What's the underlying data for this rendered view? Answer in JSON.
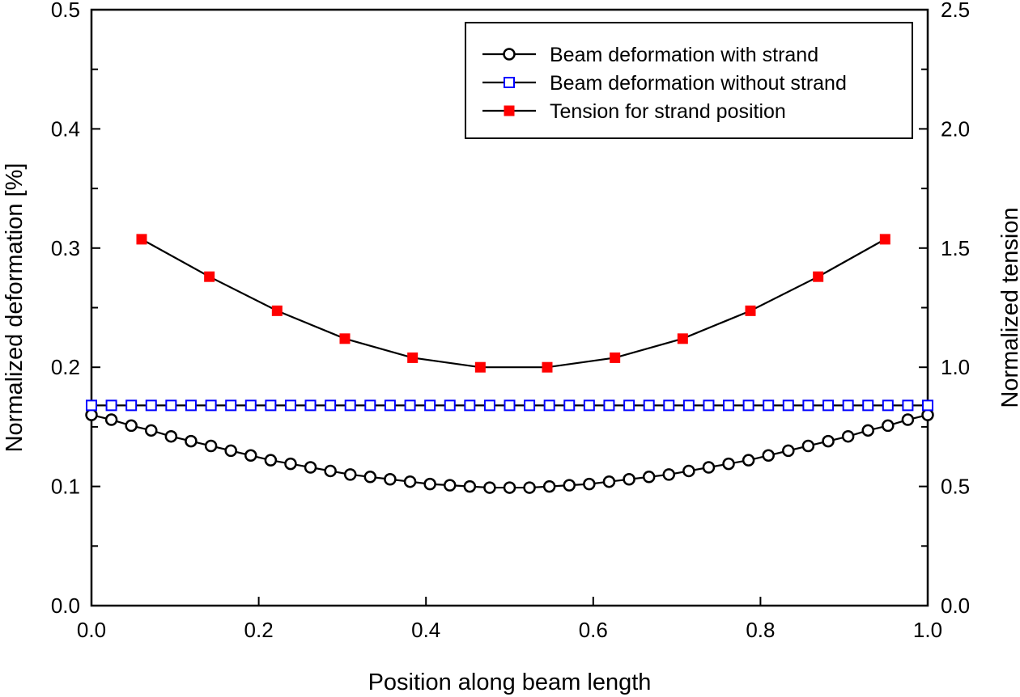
{
  "chart_data": {
    "type": "line",
    "title": "",
    "xlabel": "Position along beam length",
    "ylabel": "Normalized deformation [%]",
    "y2label": "Normalized tension",
    "xlim": [
      0.0,
      1.0
    ],
    "ylim": [
      0.0,
      0.5
    ],
    "y2lim": [
      0.0,
      2.5
    ],
    "x_ticks": [
      "0.0",
      "0.2",
      "0.4",
      "0.6",
      "0.8",
      "1.0"
    ],
    "x_tick_values": [
      0.0,
      0.2,
      0.4,
      0.6,
      0.8,
      1.0
    ],
    "y_ticks": [
      "0.0",
      "0.1",
      "0.2",
      "0.3",
      "0.4",
      "0.5"
    ],
    "y_tick_values": [
      0.0,
      0.1,
      0.2,
      0.3,
      0.4,
      0.5
    ],
    "y2_ticks": [
      "0.0",
      "0.5",
      "1.0",
      "1.5",
      "2.0",
      "2.5"
    ],
    "y2_tick_values": [
      0.0,
      0.5,
      1.0,
      1.5,
      2.0,
      2.5
    ],
    "grid": false,
    "legend_position": "top-right",
    "series": [
      {
        "name": "Beam deformation with strand",
        "axis": "left",
        "marker": "open-circle",
        "marker_color": "#000000",
        "line_color": "#000000",
        "x": [
          0.0,
          0.0238,
          0.0476,
          0.0714,
          0.0952,
          0.119,
          0.1429,
          0.1667,
          0.1905,
          0.2143,
          0.2381,
          0.2619,
          0.2857,
          0.3095,
          0.3333,
          0.3571,
          0.381,
          0.4048,
          0.4286,
          0.4524,
          0.4762,
          0.5,
          0.5238,
          0.5476,
          0.5714,
          0.5952,
          0.619,
          0.6429,
          0.6667,
          0.6905,
          0.7143,
          0.7381,
          0.7619,
          0.7857,
          0.8095,
          0.8333,
          0.8571,
          0.881,
          0.9048,
          0.9286,
          0.9524,
          0.9762,
          1.0
        ],
        "values": [
          0.16,
          0.156,
          0.151,
          0.147,
          0.142,
          0.138,
          0.134,
          0.13,
          0.126,
          0.122,
          0.119,
          0.116,
          0.113,
          0.11,
          0.108,
          0.106,
          0.104,
          0.102,
          0.101,
          0.1,
          0.099,
          0.099,
          0.099,
          0.1,
          0.101,
          0.102,
          0.104,
          0.106,
          0.108,
          0.11,
          0.113,
          0.116,
          0.119,
          0.122,
          0.126,
          0.13,
          0.134,
          0.138,
          0.142,
          0.147,
          0.151,
          0.156,
          0.16
        ]
      },
      {
        "name": "Beam deformation without strand",
        "axis": "left",
        "marker": "open-square",
        "marker_color": "#0000ff",
        "line_color": "#000000",
        "x": [
          0.0,
          0.0238,
          0.0476,
          0.0714,
          0.0952,
          0.119,
          0.1429,
          0.1667,
          0.1905,
          0.2143,
          0.2381,
          0.2619,
          0.2857,
          0.3095,
          0.3333,
          0.3571,
          0.381,
          0.4048,
          0.4286,
          0.4524,
          0.4762,
          0.5,
          0.5238,
          0.5476,
          0.5714,
          0.5952,
          0.619,
          0.6429,
          0.6667,
          0.6905,
          0.7143,
          0.7381,
          0.7619,
          0.7857,
          0.8095,
          0.8333,
          0.8571,
          0.881,
          0.9048,
          0.9286,
          0.9524,
          0.9762,
          1.0
        ],
        "values": [
          0.168,
          0.168,
          0.168,
          0.168,
          0.168,
          0.168,
          0.168,
          0.168,
          0.168,
          0.168,
          0.168,
          0.168,
          0.168,
          0.168,
          0.168,
          0.168,
          0.168,
          0.168,
          0.168,
          0.168,
          0.168,
          0.168,
          0.168,
          0.168,
          0.168,
          0.168,
          0.168,
          0.168,
          0.168,
          0.168,
          0.168,
          0.168,
          0.168,
          0.168,
          0.168,
          0.168,
          0.168,
          0.168,
          0.168,
          0.168,
          0.168,
          0.168,
          0.168
        ]
      },
      {
        "name": "Tension for strand position",
        "axis": "right",
        "marker": "filled-square",
        "marker_color": "#ff0000",
        "line_color": "#000000",
        "x": [
          0.06,
          0.141,
          0.222,
          0.303,
          0.384,
          0.465,
          0.545,
          0.626,
          0.707,
          0.788,
          0.869,
          0.949
        ],
        "values": [
          1.537,
          1.38,
          1.237,
          1.12,
          1.04,
          1.0,
          1.0,
          1.04,
          1.12,
          1.237,
          1.38,
          1.537
        ]
      }
    ]
  }
}
